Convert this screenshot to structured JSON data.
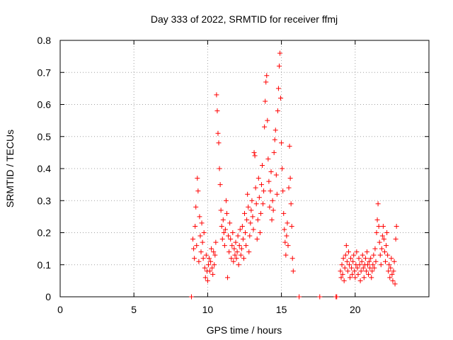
{
  "chart_data": {
    "type": "scatter",
    "title": "Day 333 of 2022, SRMTID for receiver ffmj",
    "xlabel": "GPS time / hours",
    "ylabel": "SRMTID / TECUs",
    "xlim": [
      0,
      25
    ],
    "ylim": [
      0,
      0.8
    ],
    "x_ticks": [
      0,
      5,
      10,
      15,
      20
    ],
    "x_tick_labels": [
      "0",
      "5",
      "10",
      "15",
      "20"
    ],
    "y_ticks": [
      0,
      0.1,
      0.2,
      0.3,
      0.4,
      0.5,
      0.6,
      0.7,
      0.8
    ],
    "y_tick_labels": [
      "0",
      "0.1",
      "0.2",
      "0.3",
      "0.4",
      "0.5",
      "0.6",
      "0.7",
      "0.8"
    ],
    "grid": true,
    "marker": "+",
    "series": [
      {
        "name": "SRMTID",
        "color": "#ff0000",
        "points": [
          [
            8.9,
            0.0
          ],
          [
            9.0,
            0.18
          ],
          [
            9.05,
            0.15
          ],
          [
            9.1,
            0.12
          ],
          [
            9.15,
            0.22
          ],
          [
            9.2,
            0.28
          ],
          [
            9.25,
            0.16
          ],
          [
            9.3,
            0.37
          ],
          [
            9.35,
            0.33
          ],
          [
            9.4,
            0.11
          ],
          [
            9.45,
            0.25
          ],
          [
            9.5,
            0.19
          ],
          [
            9.55,
            0.14
          ],
          [
            9.6,
            0.23
          ],
          [
            9.65,
            0.17
          ],
          [
            9.7,
            0.12
          ],
          [
            9.75,
            0.2
          ],
          [
            9.8,
            0.09
          ],
          [
            9.85,
            0.06
          ],
          [
            9.9,
            0.13
          ],
          [
            9.95,
            0.08
          ],
          [
            10.0,
            0.05
          ],
          [
            10.05,
            0.1
          ],
          [
            10.1,
            0.12
          ],
          [
            10.15,
            0.08
          ],
          [
            10.2,
            0.11
          ],
          [
            10.25,
            0.15
          ],
          [
            10.3,
            0.09
          ],
          [
            10.35,
            0.07
          ],
          [
            10.4,
            0.14
          ],
          [
            10.45,
            0.1
          ],
          [
            10.5,
            0.13
          ],
          [
            10.55,
            0.17
          ],
          [
            10.6,
            0.63
          ],
          [
            10.65,
            0.58
          ],
          [
            10.7,
            0.51
          ],
          [
            10.75,
            0.48
          ],
          [
            10.8,
            0.4
          ],
          [
            10.85,
            0.35
          ],
          [
            10.9,
            0.27
          ],
          [
            10.95,
            0.22
          ],
          [
            11.0,
            0.18
          ],
          [
            11.05,
            0.24
          ],
          [
            11.1,
            0.2
          ],
          [
            11.15,
            0.16
          ],
          [
            11.2,
            0.21
          ],
          [
            11.25,
            0.3
          ],
          [
            11.3,
            0.26
          ],
          [
            11.35,
            0.06
          ],
          [
            11.4,
            0.19
          ],
          [
            11.45,
            0.14
          ],
          [
            11.5,
            0.23
          ],
          [
            11.55,
            0.18
          ],
          [
            11.6,
            0.12
          ],
          [
            11.65,
            0.16
          ],
          [
            11.7,
            0.2
          ],
          [
            11.75,
            0.11
          ],
          [
            11.8,
            0.15
          ],
          [
            11.85,
            0.13
          ],
          [
            11.9,
            0.17
          ],
          [
            11.95,
            0.12
          ],
          [
            12.0,
            0.14
          ],
          [
            12.05,
            0.19
          ],
          [
            12.1,
            0.1
          ],
          [
            12.15,
            0.16
          ],
          [
            12.2,
            0.21
          ],
          [
            12.25,
            0.13
          ],
          [
            12.3,
            0.15
          ],
          [
            12.35,
            0.22
          ],
          [
            12.4,
            0.18
          ],
          [
            12.45,
            0.12
          ],
          [
            12.5,
            0.26
          ],
          [
            12.55,
            0.2
          ],
          [
            12.6,
            0.16
          ],
          [
            12.65,
            0.24
          ],
          [
            12.7,
            0.32
          ],
          [
            12.75,
            0.28
          ],
          [
            12.8,
            0.14
          ],
          [
            12.85,
            0.19
          ],
          [
            12.9,
            0.23
          ],
          [
            12.95,
            0.27
          ],
          [
            13.0,
            0.3
          ],
          [
            13.05,
            0.25
          ],
          [
            13.1,
            0.21
          ],
          [
            13.15,
            0.45
          ],
          [
            13.2,
            0.44
          ],
          [
            13.25,
            0.34
          ],
          [
            13.3,
            0.29
          ],
          [
            13.35,
            0.18
          ],
          [
            13.4,
            0.24
          ],
          [
            13.45,
            0.37
          ],
          [
            13.5,
            0.31
          ],
          [
            13.55,
            0.2
          ],
          [
            13.6,
            0.26
          ],
          [
            13.65,
            0.35
          ],
          [
            13.7,
            0.41
          ],
          [
            13.75,
            0.29
          ],
          [
            13.8,
            0.33
          ],
          [
            13.85,
            0.53
          ],
          [
            13.9,
            0.61
          ],
          [
            13.95,
            0.67
          ],
          [
            14.0,
            0.69
          ],
          [
            14.05,
            0.55
          ],
          [
            14.1,
            0.43
          ],
          [
            14.15,
            0.36
          ],
          [
            14.2,
            0.28
          ],
          [
            14.25,
            0.33
          ],
          [
            14.3,
            0.39
          ],
          [
            14.35,
            0.24
          ],
          [
            14.4,
            0.3
          ],
          [
            14.45,
            0.27
          ],
          [
            14.5,
            0.45
          ],
          [
            14.55,
            0.49
          ],
          [
            14.6,
            0.52
          ],
          [
            14.65,
            0.38
          ],
          [
            14.7,
            0.32
          ],
          [
            14.75,
            0.58
          ],
          [
            14.8,
            0.65
          ],
          [
            14.85,
            0.72
          ],
          [
            14.9,
            0.76
          ],
          [
            14.95,
            0.62
          ],
          [
            15.0,
            0.48
          ],
          [
            15.05,
            0.4
          ],
          [
            15.1,
            0.33
          ],
          [
            15.15,
            0.26
          ],
          [
            15.2,
            0.21
          ],
          [
            15.25,
            0.17
          ],
          [
            15.3,
            0.13
          ],
          [
            15.35,
            0.19
          ],
          [
            15.4,
            0.23
          ],
          [
            15.45,
            0.16
          ],
          [
            15.5,
            0.34
          ],
          [
            15.55,
            0.47
          ],
          [
            15.6,
            0.37
          ],
          [
            15.65,
            0.29
          ],
          [
            15.7,
            0.22
          ],
          [
            15.75,
            0.12
          ],
          [
            15.8,
            0.08
          ],
          [
            16.2,
            0.0
          ],
          [
            17.6,
            0.0
          ],
          [
            18.7,
            0.0
          ],
          [
            18.75,
            0.0
          ],
          [
            19.0,
            0.08
          ],
          [
            19.05,
            0.06
          ],
          [
            19.1,
            0.1
          ],
          [
            19.15,
            0.07
          ],
          [
            19.2,
            0.12
          ],
          [
            19.25,
            0.05
          ],
          [
            19.3,
            0.09
          ],
          [
            19.35,
            0.13
          ],
          [
            19.4,
            0.16
          ],
          [
            19.45,
            0.11
          ],
          [
            19.5,
            0.08
          ],
          [
            19.55,
            0.14
          ],
          [
            19.6,
            0.1
          ],
          [
            19.65,
            0.06
          ],
          [
            19.7,
            0.12
          ],
          [
            19.75,
            0.09
          ],
          [
            19.8,
            0.07
          ],
          [
            19.85,
            0.11
          ],
          [
            19.9,
            0.13
          ],
          [
            19.95,
            0.08
          ],
          [
            20.0,
            0.06
          ],
          [
            20.05,
            0.1
          ],
          [
            20.1,
            0.14
          ],
          [
            20.15,
            0.09
          ],
          [
            20.2,
            0.07
          ],
          [
            20.25,
            0.12
          ],
          [
            20.3,
            0.1
          ],
          [
            20.35,
            0.05
          ],
          [
            20.4,
            0.08
          ],
          [
            20.45,
            0.11
          ],
          [
            20.5,
            0.13
          ],
          [
            20.55,
            0.09
          ],
          [
            20.6,
            0.06
          ],
          [
            20.65,
            0.1
          ],
          [
            20.7,
            0.12
          ],
          [
            20.75,
            0.08
          ],
          [
            20.8,
            0.14
          ],
          [
            20.85,
            0.1
          ],
          [
            20.9,
            0.07
          ],
          [
            20.95,
            0.11
          ],
          [
            21.0,
            0.09
          ],
          [
            21.05,
            0.12
          ],
          [
            21.1,
            0.06
          ],
          [
            21.15,
            0.08
          ],
          [
            21.2,
            0.1
          ],
          [
            21.25,
            0.13
          ],
          [
            21.3,
            0.09
          ],
          [
            21.35,
            0.15
          ],
          [
            21.4,
            0.11
          ],
          [
            21.45,
            0.2
          ],
          [
            21.5,
            0.24
          ],
          [
            21.55,
            0.29
          ],
          [
            21.6,
            0.22
          ],
          [
            21.65,
            0.17
          ],
          [
            21.7,
            0.13
          ],
          [
            21.75,
            0.1
          ],
          [
            21.8,
            0.15
          ],
          [
            21.85,
            0.19
          ],
          [
            21.9,
            0.22
          ],
          [
            21.95,
            0.18
          ],
          [
            22.0,
            0.14
          ],
          [
            22.05,
            0.11
          ],
          [
            22.1,
            0.16
          ],
          [
            22.15,
            0.2
          ],
          [
            22.2,
            0.13
          ],
          [
            22.25,
            0.08
          ],
          [
            22.3,
            0.1
          ],
          [
            22.35,
            0.06
          ],
          [
            22.4,
            0.09
          ],
          [
            22.45,
            0.12
          ],
          [
            22.5,
            0.07
          ],
          [
            22.55,
            0.05
          ],
          [
            22.6,
            0.08
          ],
          [
            22.65,
            0.11
          ],
          [
            22.7,
            0.04
          ],
          [
            22.75,
            0.18
          ],
          [
            22.8,
            0.22
          ]
        ]
      }
    ]
  }
}
